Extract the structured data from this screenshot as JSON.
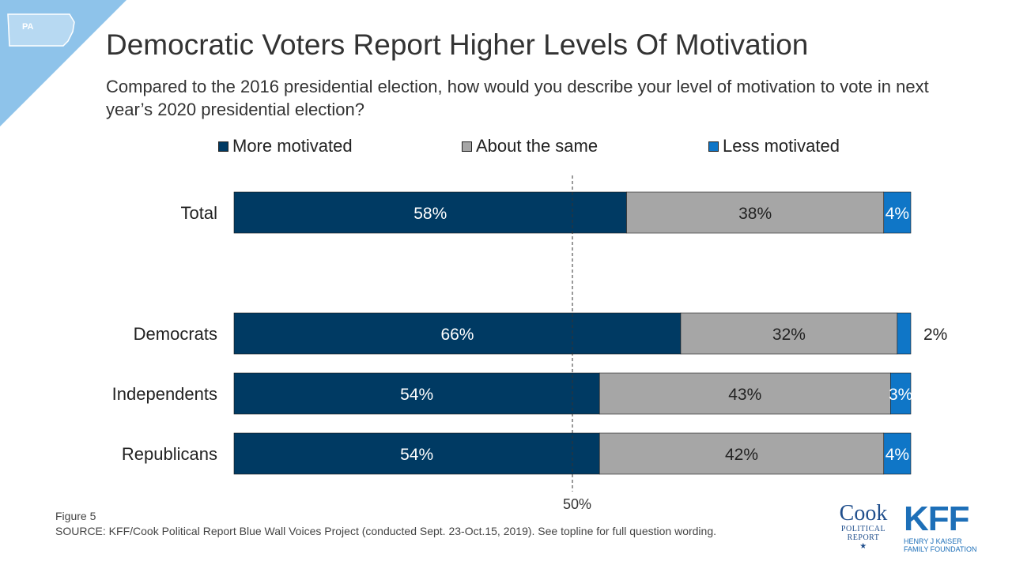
{
  "badge": "PA",
  "title": "Democratic Voters Report Higher Levels Of Motivation",
  "subtitle": "Compared to the 2016 presidential election, how would you describe your level of motivation to vote in next year’s 2020 presidential election?",
  "footer": {
    "figure": "Figure 5",
    "source": "SOURCE: KFF/Cook Political Report Blue Wall Voices Project (conducted Sept. 23-Oct.15, 2019). See topline for full question wording."
  },
  "logos": {
    "cook": {
      "big": "Cook",
      "line1": "POLITICAL",
      "line2": "REPORT"
    },
    "kff": {
      "big": "KFF",
      "line1": "HENRY J KAISER",
      "line2": "FAMILY FOUNDATION"
    }
  },
  "colors": {
    "more": "#003a63",
    "same": "#a6a6a6",
    "less": "#0f76c7",
    "corner": "#8ec3ea"
  },
  "chart_data": {
    "type": "bar",
    "orientation": "horizontal",
    "stacked": true,
    "categories": [
      "Total",
      "Democrats",
      "Independents",
      "Republicans"
    ],
    "series": [
      {
        "name": "More motivated",
        "values": [
          58,
          66,
          54,
          54
        ],
        "labels": [
          "58%",
          "66%",
          "54%",
          "54%"
        ]
      },
      {
        "name": "About the same",
        "values": [
          38,
          32,
          43,
          42
        ],
        "labels": [
          "38%",
          "32%",
          "43%",
          "42%"
        ]
      },
      {
        "name": "Less motivated",
        "values": [
          4,
          2,
          3,
          4
        ],
        "labels": [
          "4%",
          "2%",
          "3%",
          "4%"
        ]
      }
    ],
    "reference_line": {
      "value": 50,
      "label": "50%"
    },
    "xlim": [
      0,
      100
    ],
    "legend": "top"
  }
}
